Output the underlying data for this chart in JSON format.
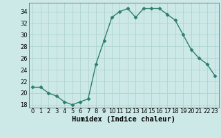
{
  "x": [
    0,
    1,
    2,
    3,
    4,
    5,
    6,
    7,
    8,
    9,
    10,
    11,
    12,
    13,
    14,
    15,
    16,
    17,
    18,
    19,
    20,
    21,
    22,
    23
  ],
  "y": [
    21,
    21,
    20,
    19.5,
    18.5,
    18,
    18.5,
    19,
    25,
    29,
    33,
    34,
    34.5,
    33,
    34.5,
    34.5,
    34.5,
    33.5,
    32.5,
    30,
    27.5,
    26,
    25,
    23
  ],
  "xlabel": "Humidex (Indice chaleur)",
  "xlim": [
    -0.5,
    23.5
  ],
  "ylim": [
    17.5,
    35.5
  ],
  "yticks": [
    18,
    20,
    22,
    24,
    26,
    28,
    30,
    32,
    34
  ],
  "xticks": [
    0,
    1,
    2,
    3,
    4,
    5,
    6,
    7,
    8,
    9,
    10,
    11,
    12,
    13,
    14,
    15,
    16,
    17,
    18,
    19,
    20,
    21,
    22,
    23
  ],
  "line_color": "#2e7d6e",
  "marker": "D",
  "marker_size": 2.5,
  "bg_color": "#cce9e8",
  "grid_color": "#aed4d2",
  "tick_label_fontsize": 6,
  "xlabel_fontsize": 7.5
}
